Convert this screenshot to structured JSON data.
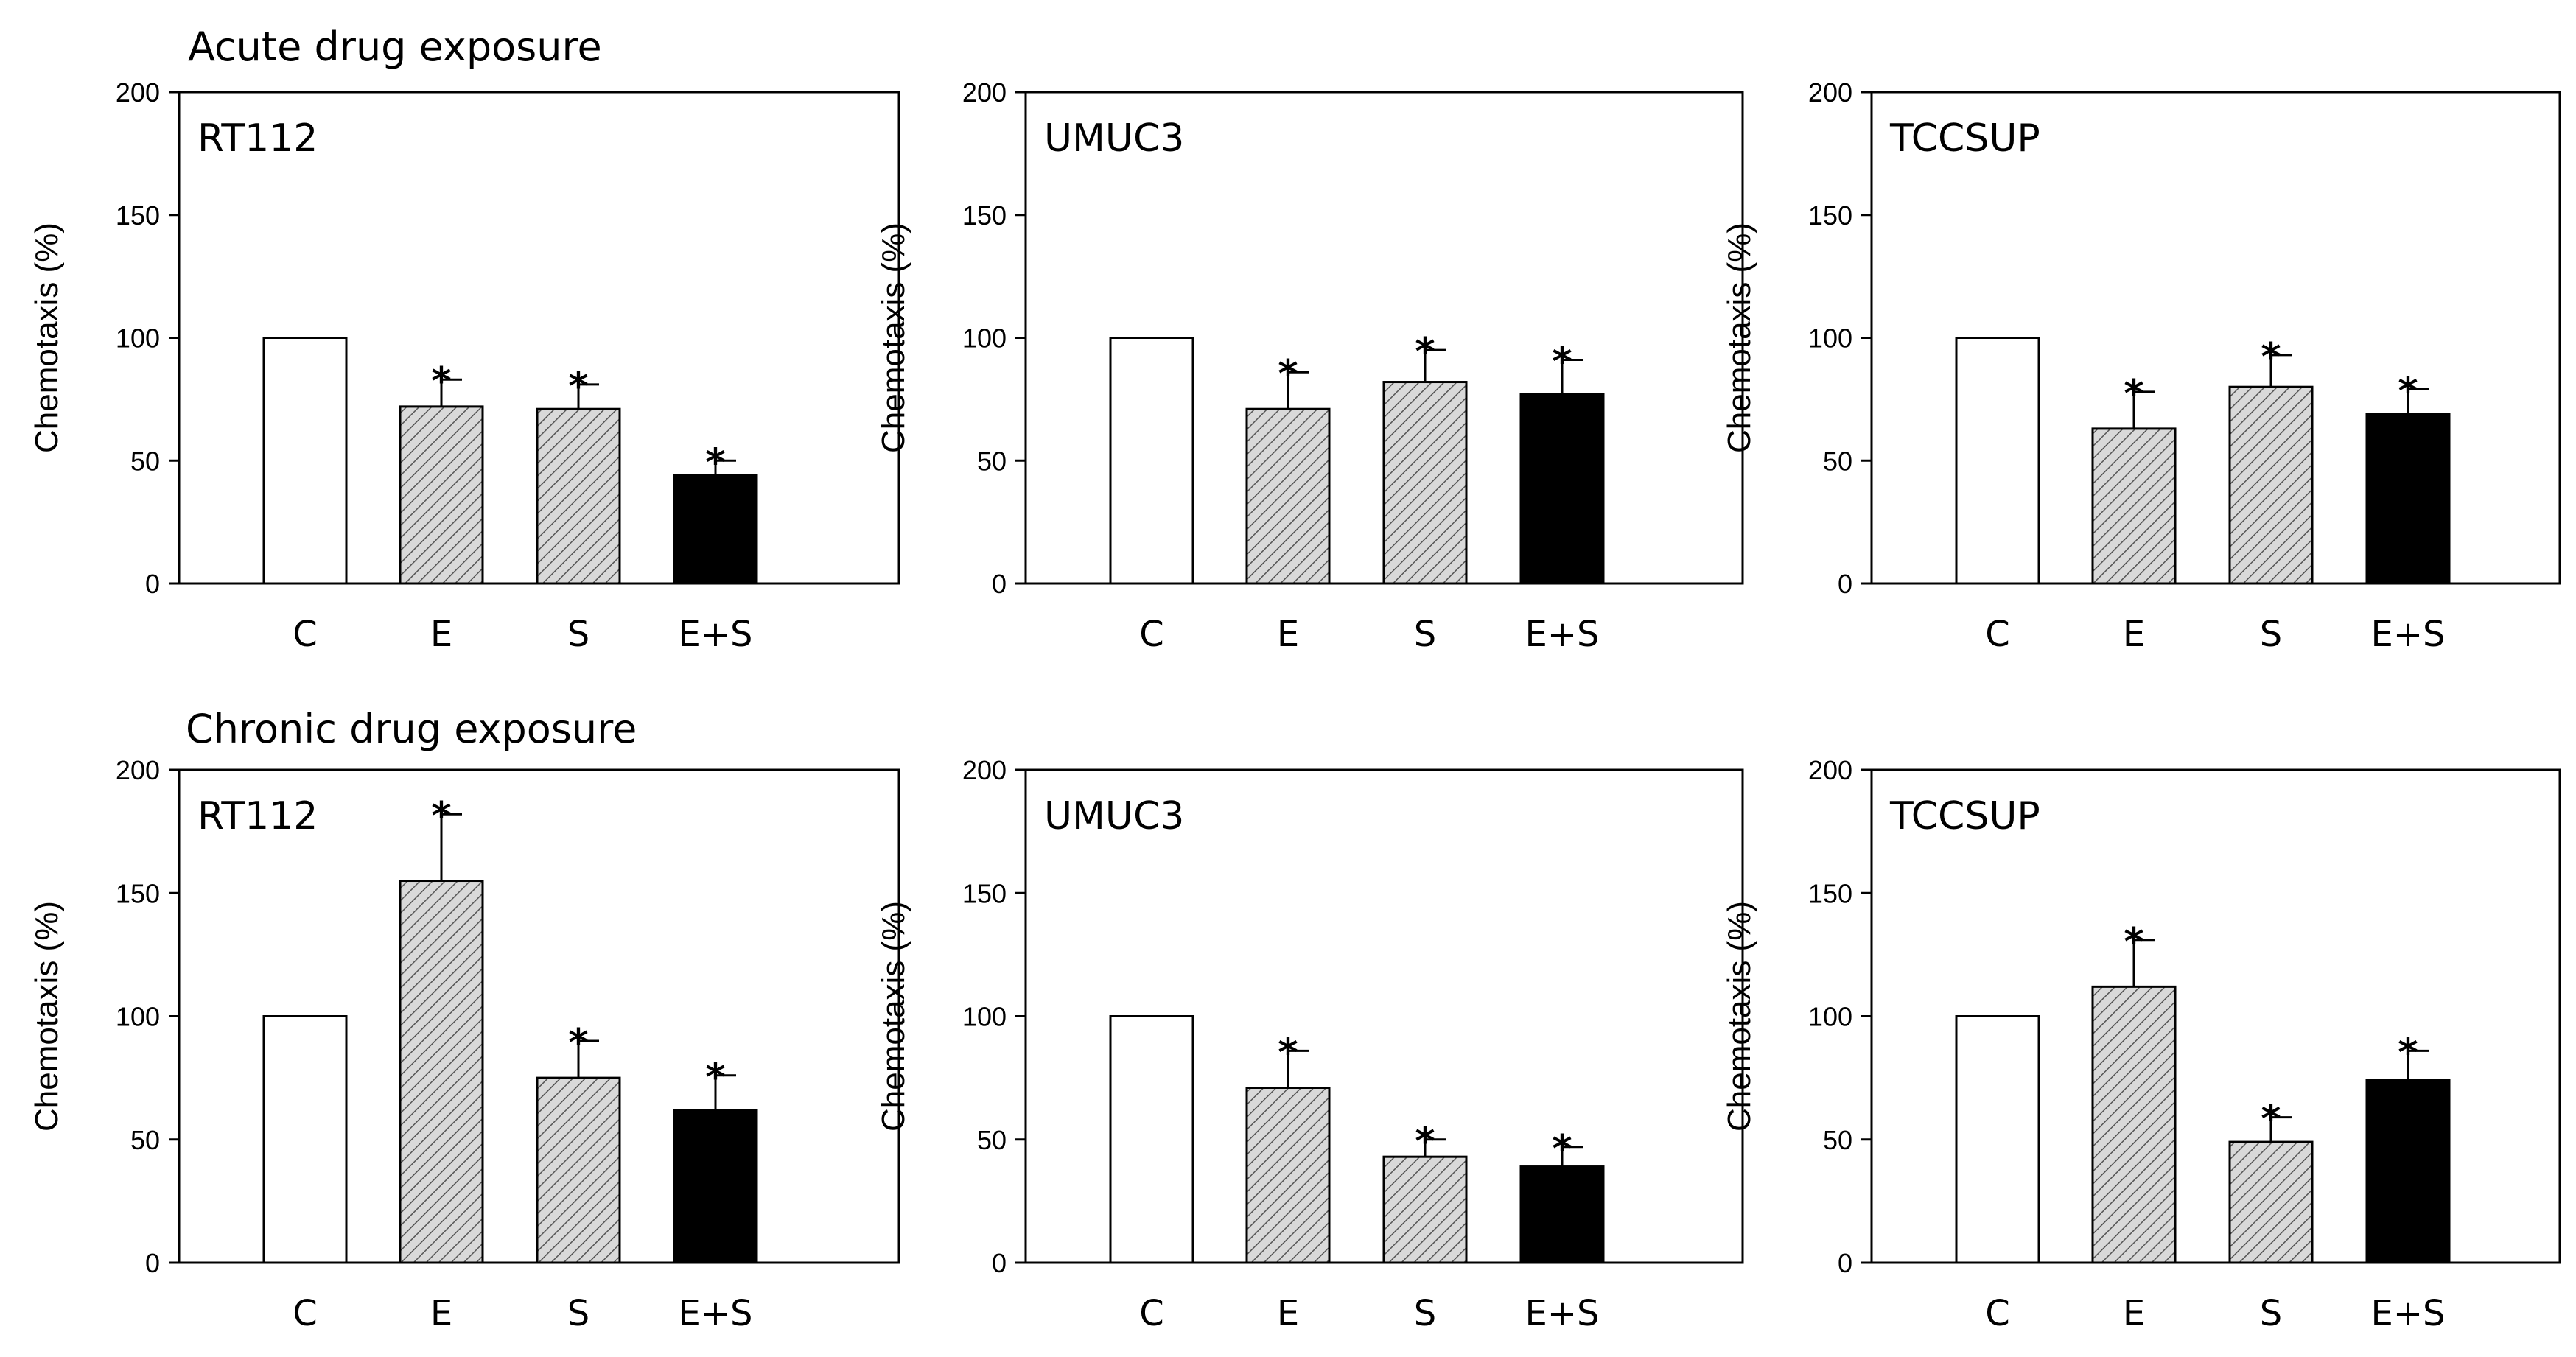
{
  "sections": {
    "acute": "Acute drug exposure",
    "chronic": "Chronic drug exposure"
  },
  "colors": {
    "C": "#ffffff",
    "E": "#d9d9d9",
    "S": "#d9d9d9",
    "E+S": "#000000",
    "stroke": "#000000"
  },
  "chart_data": [
    {
      "type": "bar",
      "section": "acute",
      "title": "RT112",
      "categories": [
        "C",
        "E",
        "S",
        "E+S"
      ],
      "values": [
        100,
        72,
        71,
        44
      ],
      "errors": [
        0,
        11,
        10,
        6
      ],
      "significance": [
        "",
        "*",
        "*",
        "*"
      ],
      "ylabel": "Chemotaxis (%)",
      "ylim": [
        0,
        200
      ],
      "yticks": [
        0,
        50,
        100,
        150,
        200
      ]
    },
    {
      "type": "bar",
      "section": "acute",
      "title": "UMUC3",
      "categories": [
        "C",
        "E",
        "S",
        "E+S"
      ],
      "values": [
        100,
        71,
        82,
        77
      ],
      "errors": [
        0,
        15,
        13,
        14
      ],
      "significance": [
        "",
        "*",
        "*",
        "*"
      ],
      "ylabel": "Chemotaxis (%)",
      "ylim": [
        0,
        200
      ],
      "yticks": [
        0,
        50,
        100,
        150,
        200
      ]
    },
    {
      "type": "bar",
      "section": "acute",
      "title": "TCCSUP",
      "categories": [
        "C",
        "E",
        "S",
        "E+S"
      ],
      "values": [
        100,
        63,
        80,
        69
      ],
      "errors": [
        0,
        15,
        13,
        10
      ],
      "significance": [
        "",
        "*",
        "*",
        "*"
      ],
      "ylabel": "Chemotaxis (%)",
      "ylim": [
        0,
        200
      ],
      "yticks": [
        0,
        50,
        100,
        150,
        200
      ]
    },
    {
      "type": "bar",
      "section": "chronic",
      "title": "RT112",
      "categories": [
        "C",
        "E",
        "S",
        "E+S"
      ],
      "values": [
        100,
        155,
        75,
        62
      ],
      "errors": [
        0,
        27,
        15,
        14
      ],
      "significance": [
        "",
        "*",
        "*",
        "*"
      ],
      "ylabel": "Chemotaxis (%)",
      "ylim": [
        0,
        200
      ],
      "yticks": [
        0,
        50,
        100,
        150,
        200
      ]
    },
    {
      "type": "bar",
      "section": "chronic",
      "title": "UMUC3",
      "categories": [
        "C",
        "E",
        "S",
        "E+S"
      ],
      "values": [
        100,
        71,
        43,
        39
      ],
      "errors": [
        0,
        15,
        7,
        8
      ],
      "significance": [
        "",
        "*",
        "*",
        "*"
      ],
      "ylabel": "Chemotaxis (%)",
      "ylim": [
        0,
        200
      ],
      "yticks": [
        0,
        50,
        100,
        150,
        200
      ]
    },
    {
      "type": "bar",
      "section": "chronic",
      "title": "TCCSUP",
      "categories": [
        "C",
        "E",
        "S",
        "E+S"
      ],
      "values": [
        100,
        112,
        49,
        74
      ],
      "errors": [
        0,
        19,
        10,
        12
      ],
      "significance": [
        "",
        "*",
        "*",
        "*"
      ],
      "ylabel": "Chemotaxis (%)",
      "ylim": [
        0,
        200
      ],
      "yticks": [
        0,
        50,
        100,
        150,
        200
      ]
    }
  ]
}
